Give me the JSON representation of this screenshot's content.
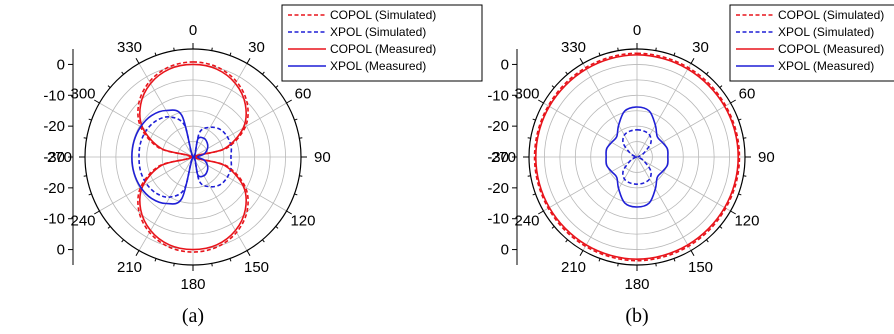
{
  "chart_data": [
    {
      "type": "polar",
      "caption": "(a)",
      "angle_ticks_deg": [
        0,
        30,
        60,
        90,
        120,
        150,
        180,
        210,
        240,
        270,
        300,
        330
      ],
      "radial_ticks_db": [
        0,
        -10,
        -20,
        -30
      ],
      "rlim_db": [
        -30,
        5
      ],
      "grid": true,
      "legend_position": "top-right",
      "series": [
        {
          "name": "COPOL (Simulated)",
          "color": "#e8141b",
          "dash": true,
          "angles": [
            0,
            15,
            30,
            45,
            60,
            75,
            90,
            105,
            120,
            135,
            150,
            165,
            180,
            195,
            210,
            225,
            240,
            255,
            270,
            285,
            300,
            315,
            330,
            345
          ],
          "values": [
            0.8,
            0.2,
            -1.8,
            -5.2,
            -10.4,
            -18.6,
            -29.0,
            -18.6,
            -10.4,
            -5.2,
            -1.8,
            0.2,
            0.8,
            0.2,
            -1.8,
            -5.2,
            -10.4,
            -18.6,
            -29.0,
            -18.6,
            -10.4,
            -5.2,
            -1.8,
            0.2
          ]
        },
        {
          "name": "XPOL (Simulated)",
          "color": "#1f1fd6",
          "dash": true,
          "angles": [
            0,
            15,
            30,
            45,
            60,
            75,
            90,
            105,
            120,
            135,
            150,
            165,
            180,
            195,
            210,
            225,
            240,
            255,
            270,
            285,
            300,
            315,
            330,
            345
          ],
          "values": [
            -30,
            -21.7,
            -18.9,
            -17.4,
            -17.1,
            -17.2,
            -17.7,
            -17.2,
            -17.1,
            -17.4,
            -18.9,
            -21.7,
            -30,
            -19.3,
            -15.0,
            -13.3,
            -12.6,
            -12.4,
            -12.5,
            -12.4,
            -12.6,
            -13.3,
            -15.0,
            -19.3
          ]
        },
        {
          "name": "COPOL (Measured)",
          "color": "#e8141b",
          "dash": false,
          "angles": [
            0,
            15,
            30,
            45,
            60,
            75,
            90,
            105,
            120,
            135,
            150,
            165,
            180,
            195,
            210,
            225,
            240,
            255,
            270,
            285,
            300,
            315,
            330,
            345
          ],
          "values": [
            0.0,
            -0.5,
            -2.5,
            -6.0,
            -11.2,
            -19.4,
            -29.5,
            -19.4,
            -11.2,
            -6.0,
            -2.5,
            -0.5,
            0.0,
            -0.5,
            -2.5,
            -6.0,
            -11.2,
            -19.4,
            -29.5,
            -19.4,
            -11.2,
            -6.0,
            -2.5,
            -0.5
          ]
        },
        {
          "name": "XPOL (Measured)",
          "color": "#1f1fd6",
          "dash": false,
          "angles": [
            0,
            15,
            30,
            45,
            60,
            75,
            90,
            105,
            120,
            135,
            150,
            165,
            180,
            195,
            210,
            225,
            240,
            255,
            270,
            285,
            300,
            315,
            330,
            345
          ],
          "values": [
            -30,
            -24.0,
            -23.0,
            -23.5,
            -24.6,
            -26.3,
            -28.5,
            -26.3,
            -24.6,
            -23.5,
            -23.0,
            -24.0,
            -30,
            -16.1,
            -12.6,
            -11.0,
            -10.4,
            -10.2,
            -10.2,
            -10.2,
            -10.4,
            -11.0,
            -12.6,
            -16.1
          ]
        }
      ]
    },
    {
      "type": "polar",
      "caption": "(b)",
      "angle_ticks_deg": [
        0,
        30,
        60,
        90,
        120,
        150,
        180,
        210,
        240,
        270,
        300,
        330
      ],
      "radial_ticks_db": [
        0,
        -10,
        -20,
        -30
      ],
      "rlim_db": [
        -30,
        5
      ],
      "grid": true,
      "legend_position": "top-right",
      "series": [
        {
          "name": "COPOL (Simulated)",
          "color": "#e8141b",
          "dash": true,
          "angles": [
            0,
            15,
            30,
            45,
            60,
            75,
            90,
            105,
            120,
            135,
            150,
            165,
            180,
            195,
            210,
            225,
            240,
            255,
            270,
            285,
            300,
            315,
            330,
            345
          ],
          "values": [
            3.6,
            3.5,
            3.4,
            3.3,
            3.2,
            3.2,
            3.2,
            3.2,
            3.2,
            3.3,
            3.4,
            3.5,
            3.6,
            3.5,
            3.4,
            3.3,
            3.2,
            3.2,
            3.2,
            3.2,
            3.2,
            3.3,
            3.4,
            3.5
          ]
        },
        {
          "name": "XPOL (Simulated)",
          "color": "#1f1fd6",
          "dash": true,
          "angles": [
            0,
            15,
            30,
            45,
            60,
            75,
            90,
            105,
            120,
            135,
            150,
            165,
            180,
            195,
            210,
            225,
            240,
            255,
            270,
            285,
            300,
            315,
            330,
            345
          ],
          "values": [
            -21.2,
            -21.3,
            -21.8,
            -23.7,
            -27.4,
            -29.3,
            -30,
            -29.3,
            -27.4,
            -23.7,
            -21.8,
            -21.3,
            -21.2,
            -21.3,
            -21.8,
            -23.7,
            -27.4,
            -29.3,
            -30,
            -29.3,
            -27.4,
            -23.7,
            -21.8,
            -21.3
          ]
        },
        {
          "name": "COPOL (Measured)",
          "color": "#e8141b",
          "dash": false,
          "angles": [
            0,
            15,
            30,
            45,
            60,
            75,
            90,
            105,
            120,
            135,
            150,
            165,
            180,
            195,
            210,
            225,
            240,
            255,
            270,
            285,
            300,
            315,
            330,
            345
          ],
          "values": [
            3.1,
            3.0,
            2.9,
            2.8,
            2.8,
            2.8,
            2.8,
            2.8,
            2.8,
            2.8,
            2.9,
            3.0,
            3.1,
            3.0,
            2.9,
            2.8,
            2.8,
            2.8,
            2.8,
            2.8,
            2.8,
            2.8,
            2.9,
            3.0
          ]
        },
        {
          "name": "XPOL (Measured)",
          "color": "#1f1fd6",
          "dash": false,
          "angles": [
            0,
            15,
            30,
            45,
            60,
            75,
            90,
            105,
            120,
            135,
            150,
            165,
            180,
            195,
            210,
            225,
            240,
            255,
            270,
            285,
            300,
            315,
            330,
            345
          ],
          "values": [
            -13.8,
            -14.6,
            -18.1,
            -20.7,
            -20.5,
            -19.8,
            -20.0,
            -19.8,
            -20.5,
            -20.7,
            -18.1,
            -14.6,
            -13.8,
            -14.6,
            -18.1,
            -20.7,
            -20.5,
            -19.8,
            -20.0,
            -19.8,
            -20.5,
            -20.7,
            -18.1,
            -14.6
          ]
        }
      ]
    }
  ]
}
